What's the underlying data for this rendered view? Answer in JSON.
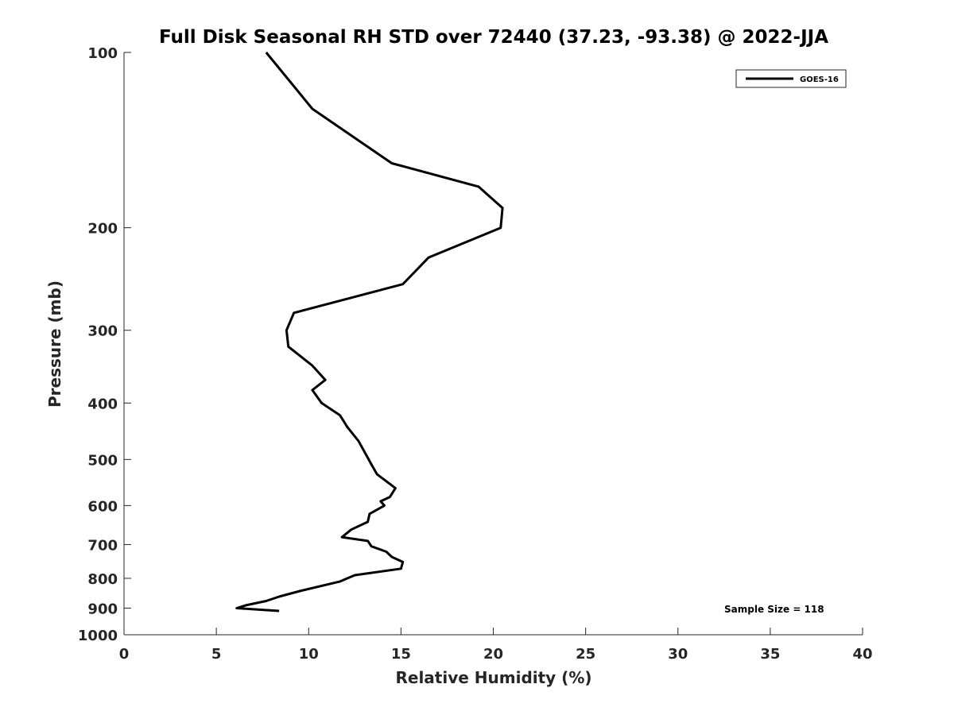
{
  "chart_data": {
    "type": "line",
    "title": "Full Disk Seasonal RH STD over 72440 (37.23, -93.38) @ 2022-JJA",
    "xlabel": "Relative Humidity (%)",
    "ylabel": "Pressure (mb)",
    "xlim": [
      0,
      40
    ],
    "ylim": [
      100,
      1000
    ],
    "y_scale": "log",
    "y_reversed": true,
    "x_ticks": [
      0,
      5,
      10,
      15,
      20,
      25,
      30,
      35,
      40
    ],
    "x_tick_labels": [
      "0",
      "5",
      "10",
      "15",
      "20",
      "25",
      "30",
      "35",
      "40"
    ],
    "y_ticks": [
      100,
      200,
      300,
      400,
      500,
      600,
      700,
      800,
      900,
      1000
    ],
    "y_tick_labels": [
      "100",
      "200",
      "300",
      "400",
      "500",
      "600",
      "700",
      "800",
      "900",
      "1000"
    ],
    "grid": false,
    "legend_position": "top-right",
    "annotation": "Sample Size = 118",
    "series": [
      {
        "name": "GOES-16",
        "color": "#000000",
        "x": [
          7.7,
          10.2,
          14.5,
          19.2,
          20.5,
          20.4,
          16.5,
          15.1,
          9.2,
          8.8,
          8.9,
          10.2,
          10.9,
          10.2,
          10.7,
          11.7,
          12.1,
          12.7,
          13.1,
          13.4,
          13.7,
          14.7,
          14.4,
          13.9,
          14.1,
          13.3,
          13.2,
          12.3,
          11.8,
          13.2,
          13.4,
          14.2,
          14.5,
          15.1,
          15.0,
          12.5,
          11.7,
          9.6,
          8.4,
          7.7,
          6.6,
          6.1,
          8.4
        ],
        "y": [
          100,
          125,
          155,
          170,
          185,
          200,
          225,
          250,
          280,
          300,
          320,
          345,
          365,
          380,
          400,
          420,
          440,
          465,
          490,
          510,
          530,
          560,
          580,
          590,
          600,
          620,
          640,
          660,
          680,
          690,
          705,
          720,
          735,
          750,
          770,
          790,
          810,
          840,
          860,
          875,
          890,
          900,
          910
        ]
      }
    ]
  }
}
